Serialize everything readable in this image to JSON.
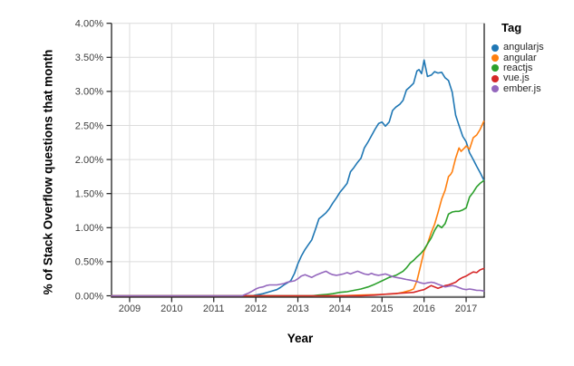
{
  "figure": {
    "y_axis_title": "% of Stack Overflow questions that month",
    "x_axis_title": "Year"
  },
  "legend": {
    "title": "Tag",
    "items": [
      {
        "label": "angularjs",
        "color": "#1f77b4"
      },
      {
        "label": "angular",
        "color": "#ff7f0e"
      },
      {
        "label": "reactjs",
        "color": "#2ca02c"
      },
      {
        "label": "vue.js",
        "color": "#d62728"
      },
      {
        "label": "ember.js",
        "color": "#9467bd"
      }
    ]
  },
  "style": {
    "grid_color": "#dcdcdc",
    "axis_color": "#1f1f1f",
    "tick_label_color": "#3f3f3f",
    "background": "#ffffff"
  },
  "chart_data": {
    "type": "line",
    "title": "",
    "xlabel": "Year",
    "ylabel": "% of Stack Overflow questions that month",
    "xlim": [
      2008.57,
      2017.43
    ],
    "ylim": [
      0,
      4
    ],
    "y_unit": "percent",
    "grid": true,
    "legend_position": "right",
    "x_ticks": [
      2009,
      2010,
      2011,
      2012,
      2013,
      2014,
      2015,
      2016,
      2017
    ],
    "x_tick_labels": [
      "2009",
      "2010",
      "2011",
      "2012",
      "2013",
      "2014",
      "2015",
      "2016",
      "2017"
    ],
    "y_ticks": [
      0,
      0.5,
      1,
      1.5,
      2,
      2.5,
      3,
      3.5,
      4
    ],
    "y_tick_labels": [
      "0.00%",
      "0.50%",
      "1.00%",
      "1.50%",
      "2.00%",
      "2.50%",
      "3.00%",
      "3.50%",
      "4.00%"
    ],
    "series": [
      {
        "name": "angularjs",
        "color": "#1f77b4",
        "points": [
          [
            2008.57,
            0
          ],
          [
            2011.92,
            0
          ],
          [
            2012.0,
            0.01
          ],
          [
            2012.17,
            0.03
          ],
          [
            2012.33,
            0.06
          ],
          [
            2012.5,
            0.09
          ],
          [
            2012.58,
            0.12
          ],
          [
            2012.67,
            0.16
          ],
          [
            2012.75,
            0.19
          ],
          [
            2012.83,
            0.22
          ],
          [
            2012.92,
            0.33
          ],
          [
            2013.0,
            0.47
          ],
          [
            2013.08,
            0.58
          ],
          [
            2013.17,
            0.68
          ],
          [
            2013.25,
            0.75
          ],
          [
            2013.33,
            0.82
          ],
          [
            2013.42,
            0.98
          ],
          [
            2013.5,
            1.13
          ],
          [
            2013.58,
            1.17
          ],
          [
            2013.67,
            1.22
          ],
          [
            2013.75,
            1.28
          ],
          [
            2013.83,
            1.36
          ],
          [
            2013.92,
            1.44
          ],
          [
            2014.0,
            1.52
          ],
          [
            2014.08,
            1.58
          ],
          [
            2014.17,
            1.65
          ],
          [
            2014.25,
            1.82
          ],
          [
            2014.33,
            1.88
          ],
          [
            2014.42,
            1.96
          ],
          [
            2014.5,
            2.02
          ],
          [
            2014.58,
            2.17
          ],
          [
            2014.67,
            2.26
          ],
          [
            2014.75,
            2.35
          ],
          [
            2014.83,
            2.44
          ],
          [
            2014.92,
            2.53
          ],
          [
            2015.0,
            2.55
          ],
          [
            2015.08,
            2.49
          ],
          [
            2015.17,
            2.55
          ],
          [
            2015.25,
            2.72
          ],
          [
            2015.33,
            2.77
          ],
          [
            2015.42,
            2.81
          ],
          [
            2015.5,
            2.87
          ],
          [
            2015.58,
            3.02
          ],
          [
            2015.67,
            3.07
          ],
          [
            2015.75,
            3.12
          ],
          [
            2015.83,
            3.3
          ],
          [
            2015.88,
            3.32
          ],
          [
            2015.94,
            3.26
          ],
          [
            2016.0,
            3.46
          ],
          [
            2016.08,
            3.22
          ],
          [
            2016.17,
            3.24
          ],
          [
            2016.25,
            3.29
          ],
          [
            2016.33,
            3.27
          ],
          [
            2016.42,
            3.28
          ],
          [
            2016.5,
            3.2
          ],
          [
            2016.58,
            3.16
          ],
          [
            2016.67,
            2.99
          ],
          [
            2016.75,
            2.65
          ],
          [
            2016.83,
            2.5
          ],
          [
            2016.92,
            2.34
          ],
          [
            2017.0,
            2.26
          ],
          [
            2017.08,
            2.1
          ],
          [
            2017.17,
            2.0
          ],
          [
            2017.25,
            1.9
          ],
          [
            2017.33,
            1.81
          ],
          [
            2017.42,
            1.7
          ]
        ]
      },
      {
        "name": "angular",
        "color": "#ff7f0e",
        "points": [
          [
            2008.57,
            0
          ],
          [
            2014.0,
            0
          ],
          [
            2014.5,
            0.01
          ],
          [
            2015.0,
            0.02
          ],
          [
            2015.33,
            0.03
          ],
          [
            2015.5,
            0.05
          ],
          [
            2015.67,
            0.08
          ],
          [
            2015.75,
            0.1
          ],
          [
            2015.83,
            0.22
          ],
          [
            2015.92,
            0.45
          ],
          [
            2016.0,
            0.66
          ],
          [
            2016.08,
            0.76
          ],
          [
            2016.17,
            0.93
          ],
          [
            2016.25,
            1.05
          ],
          [
            2016.33,
            1.22
          ],
          [
            2016.42,
            1.42
          ],
          [
            2016.5,
            1.55
          ],
          [
            2016.58,
            1.75
          ],
          [
            2016.63,
            1.78
          ],
          [
            2016.67,
            1.82
          ],
          [
            2016.75,
            2.02
          ],
          [
            2016.83,
            2.17
          ],
          [
            2016.88,
            2.12
          ],
          [
            2016.96,
            2.17
          ],
          [
            2017.0,
            2.2
          ],
          [
            2017.08,
            2.15
          ],
          [
            2017.17,
            2.32
          ],
          [
            2017.25,
            2.36
          ],
          [
            2017.33,
            2.44
          ],
          [
            2017.42,
            2.56
          ]
        ]
      },
      {
        "name": "reactjs",
        "color": "#2ca02c",
        "points": [
          [
            2008.57,
            0
          ],
          [
            2013.33,
            0
          ],
          [
            2013.5,
            0.01
          ],
          [
            2013.67,
            0.02
          ],
          [
            2013.83,
            0.03
          ],
          [
            2014.0,
            0.05
          ],
          [
            2014.17,
            0.06
          ],
          [
            2014.33,
            0.08
          ],
          [
            2014.5,
            0.1
          ],
          [
            2014.67,
            0.13
          ],
          [
            2014.83,
            0.17
          ],
          [
            2015.0,
            0.22
          ],
          [
            2015.17,
            0.27
          ],
          [
            2015.33,
            0.3
          ],
          [
            2015.5,
            0.36
          ],
          [
            2015.58,
            0.41
          ],
          [
            2015.67,
            0.48
          ],
          [
            2015.75,
            0.52
          ],
          [
            2015.83,
            0.57
          ],
          [
            2015.92,
            0.62
          ],
          [
            2016.0,
            0.68
          ],
          [
            2016.08,
            0.76
          ],
          [
            2016.17,
            0.85
          ],
          [
            2016.25,
            0.96
          ],
          [
            2016.33,
            1.04
          ],
          [
            2016.42,
            1.0
          ],
          [
            2016.5,
            1.06
          ],
          [
            2016.58,
            1.2
          ],
          [
            2016.67,
            1.23
          ],
          [
            2016.75,
            1.24
          ],
          [
            2016.83,
            1.24
          ],
          [
            2016.92,
            1.26
          ],
          [
            2017.0,
            1.29
          ],
          [
            2017.08,
            1.45
          ],
          [
            2017.17,
            1.52
          ],
          [
            2017.25,
            1.6
          ],
          [
            2017.33,
            1.65
          ],
          [
            2017.42,
            1.69
          ]
        ]
      },
      {
        "name": "vue.js",
        "color": "#d62728",
        "points": [
          [
            2008.57,
            0
          ],
          [
            2014.5,
            0
          ],
          [
            2014.83,
            0.01
          ],
          [
            2015.0,
            0.02
          ],
          [
            2015.25,
            0.03
          ],
          [
            2015.5,
            0.04
          ],
          [
            2015.75,
            0.05
          ],
          [
            2015.92,
            0.08
          ],
          [
            2016.0,
            0.09
          ],
          [
            2016.08,
            0.12
          ],
          [
            2016.17,
            0.15
          ],
          [
            2016.25,
            0.13
          ],
          [
            2016.33,
            0.11
          ],
          [
            2016.42,
            0.13
          ],
          [
            2016.5,
            0.15
          ],
          [
            2016.58,
            0.16
          ],
          [
            2016.67,
            0.18
          ],
          [
            2016.75,
            0.2
          ],
          [
            2016.83,
            0.24
          ],
          [
            2016.92,
            0.27
          ],
          [
            2017.0,
            0.29
          ],
          [
            2017.08,
            0.32
          ],
          [
            2017.17,
            0.35
          ],
          [
            2017.25,
            0.34
          ],
          [
            2017.33,
            0.38
          ],
          [
            2017.42,
            0.4
          ]
        ]
      },
      {
        "name": "ember.js",
        "color": "#9467bd",
        "points": [
          [
            2008.57,
            0
          ],
          [
            2011.67,
            0
          ],
          [
            2011.75,
            0.02
          ],
          [
            2011.83,
            0.04
          ],
          [
            2011.92,
            0.07
          ],
          [
            2012.0,
            0.1
          ],
          [
            2012.08,
            0.12
          ],
          [
            2012.17,
            0.13
          ],
          [
            2012.25,
            0.15
          ],
          [
            2012.33,
            0.16
          ],
          [
            2012.5,
            0.16
          ],
          [
            2012.67,
            0.18
          ],
          [
            2012.75,
            0.2
          ],
          [
            2012.92,
            0.22
          ],
          [
            2013.0,
            0.25
          ],
          [
            2013.08,
            0.29
          ],
          [
            2013.17,
            0.31
          ],
          [
            2013.25,
            0.29
          ],
          [
            2013.33,
            0.27
          ],
          [
            2013.42,
            0.3
          ],
          [
            2013.5,
            0.32
          ],
          [
            2013.58,
            0.34
          ],
          [
            2013.67,
            0.36
          ],
          [
            2013.75,
            0.33
          ],
          [
            2013.83,
            0.31
          ],
          [
            2013.92,
            0.3
          ],
          [
            2014.0,
            0.31
          ],
          [
            2014.08,
            0.32
          ],
          [
            2014.17,
            0.34
          ],
          [
            2014.25,
            0.32
          ],
          [
            2014.33,
            0.34
          ],
          [
            2014.42,
            0.36
          ],
          [
            2014.5,
            0.34
          ],
          [
            2014.58,
            0.32
          ],
          [
            2014.67,
            0.31
          ],
          [
            2014.75,
            0.33
          ],
          [
            2014.83,
            0.31
          ],
          [
            2014.92,
            0.3
          ],
          [
            2015.0,
            0.31
          ],
          [
            2015.08,
            0.32
          ],
          [
            2015.17,
            0.3
          ],
          [
            2015.25,
            0.28
          ],
          [
            2015.33,
            0.27
          ],
          [
            2015.42,
            0.26
          ],
          [
            2015.5,
            0.25
          ],
          [
            2015.58,
            0.24
          ],
          [
            2015.67,
            0.23
          ],
          [
            2015.75,
            0.22
          ],
          [
            2015.83,
            0.21
          ],
          [
            2015.92,
            0.19
          ],
          [
            2016.0,
            0.18
          ],
          [
            2016.08,
            0.19
          ],
          [
            2016.17,
            0.2
          ],
          [
            2016.25,
            0.19
          ],
          [
            2016.33,
            0.17
          ],
          [
            2016.42,
            0.15
          ],
          [
            2016.5,
            0.13
          ],
          [
            2016.58,
            0.14
          ],
          [
            2016.67,
            0.15
          ],
          [
            2016.75,
            0.14
          ],
          [
            2016.83,
            0.12
          ],
          [
            2016.92,
            0.1
          ],
          [
            2017.0,
            0.09
          ],
          [
            2017.08,
            0.1
          ],
          [
            2017.17,
            0.09
          ],
          [
            2017.25,
            0.08
          ],
          [
            2017.33,
            0.08
          ],
          [
            2017.42,
            0.07
          ]
        ]
      }
    ]
  }
}
